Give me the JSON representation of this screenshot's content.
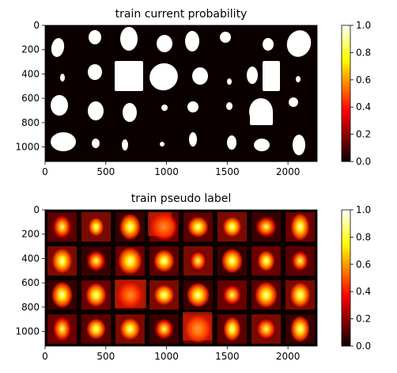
{
  "chart_data": [
    {
      "type": "heatmap",
      "title": "train current probability",
      "xlabel": "",
      "ylabel": "",
      "xlim": [
        0,
        2240
      ],
      "ylim": [
        1120,
        0
      ],
      "x_ticks": [
        0,
        500,
        1000,
        1500,
        2000
      ],
      "y_ticks": [
        0,
        200,
        400,
        600,
        800,
        1000
      ],
      "colormap": "hot",
      "colorbar": {
        "range": [
          0.0,
          1.0
        ],
        "ticks": [
          "0.0",
          "0.2",
          "0.4",
          "0.6",
          "0.8",
          "1.0"
        ]
      },
      "grid": false,
      "description_values": "binary mask: blobs at value 1.0 on background 0.0"
    },
    {
      "type": "heatmap",
      "title": "train pseudo label",
      "xlabel": "",
      "ylabel": "",
      "xlim": [
        0,
        2240
      ],
      "ylim": [
        1120,
        0
      ],
      "x_ticks": [
        0,
        500,
        1000,
        1500,
        2000
      ],
      "y_ticks": [
        0,
        200,
        400,
        600,
        800,
        1000
      ],
      "colormap": "hot",
      "colorbar": {
        "range": [
          0.0,
          1.0
        ],
        "ticks": [
          "0.0",
          "0.2",
          "0.4",
          "0.6",
          "0.8",
          "1.0"
        ]
      },
      "grid": false,
      "description_values": "per-cell soft labels from ~0.2 at edges to ~1.0 at centers"
    }
  ]
}
